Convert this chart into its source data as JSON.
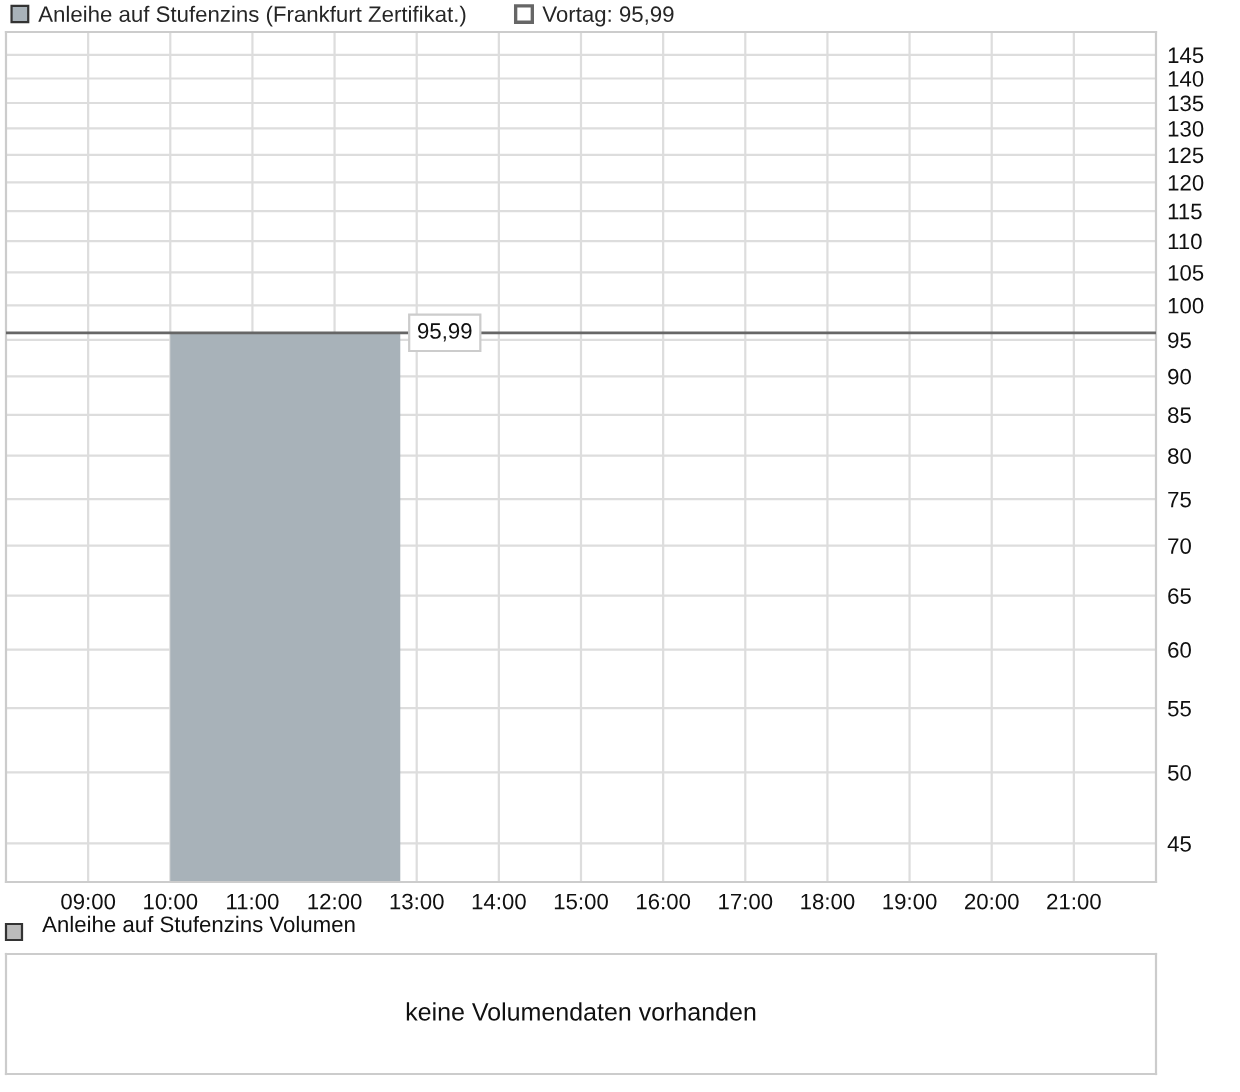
{
  "chart_data": [
    {
      "type": "area",
      "x": [
        10,
        12.8
      ],
      "series": [
        {
          "name": "Anleihe auf Stufenzins (Frankfurt Zertifikat.)",
          "color": "#a8b2b9",
          "values": [
            95.99,
            95.99
          ],
          "value_labels": [
            null,
            "95,99"
          ]
        }
      ],
      "xlim": [
        8,
        22
      ],
      "xticks": [
        {
          "value": 9,
          "label": "09:00"
        },
        {
          "value": 10,
          "label": "10:00"
        },
        {
          "value": 11,
          "label": "11:00"
        },
        {
          "value": 12,
          "label": "12:00"
        },
        {
          "value": 13,
          "label": "13:00"
        },
        {
          "value": 14,
          "label": "14:00"
        },
        {
          "value": 15,
          "label": "15:00"
        },
        {
          "value": 16,
          "label": "16:00"
        },
        {
          "value": 17,
          "label": "17:00"
        },
        {
          "value": 18,
          "label": "18:00"
        },
        {
          "value": 19,
          "label": "19:00"
        },
        {
          "value": 20,
          "label": "20:00"
        },
        {
          "value": 21,
          "label": "21:00"
        }
      ],
      "ylim": [
        42.5,
        150
      ],
      "yticks": [
        45,
        50,
        55,
        60,
        65,
        70,
        75,
        80,
        85,
        90,
        95,
        100,
        105,
        110,
        115,
        120,
        125,
        130,
        135,
        140,
        145
      ],
      "log": "y",
      "grid": true,
      "legend": "top left",
      "ref_lines": [
        {
          "axis": "y",
          "value": 95.99,
          "label": "Vortag: 95,99",
          "color": "#666666"
        }
      ]
    },
    {
      "type": "other",
      "title": "Anleihe auf Stufenzins Volumen",
      "annotations": [
        "keine Volumendaten vorhanden"
      ]
    }
  ]
}
